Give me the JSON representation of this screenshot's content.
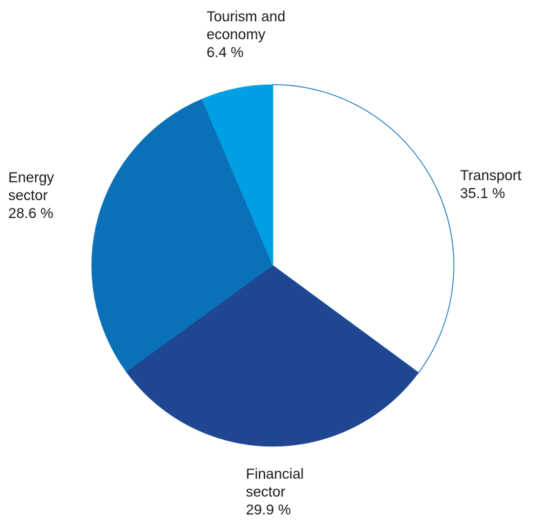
{
  "chart_data": {
    "type": "pie",
    "categories": [
      "Transport",
      "Financial sector",
      "Energy sector",
      "Tourism and economy"
    ],
    "values": [
      35.1,
      29.9,
      28.6,
      6.4
    ],
    "value_labels": [
      "35.1 %",
      "29.9 %",
      "28.6 %",
      "6.4 %"
    ],
    "colors": [
      "#ffffff",
      "#1f4690",
      "#0a70b8",
      "#009fe3"
    ],
    "edge_color": "#0a70b8"
  }
}
